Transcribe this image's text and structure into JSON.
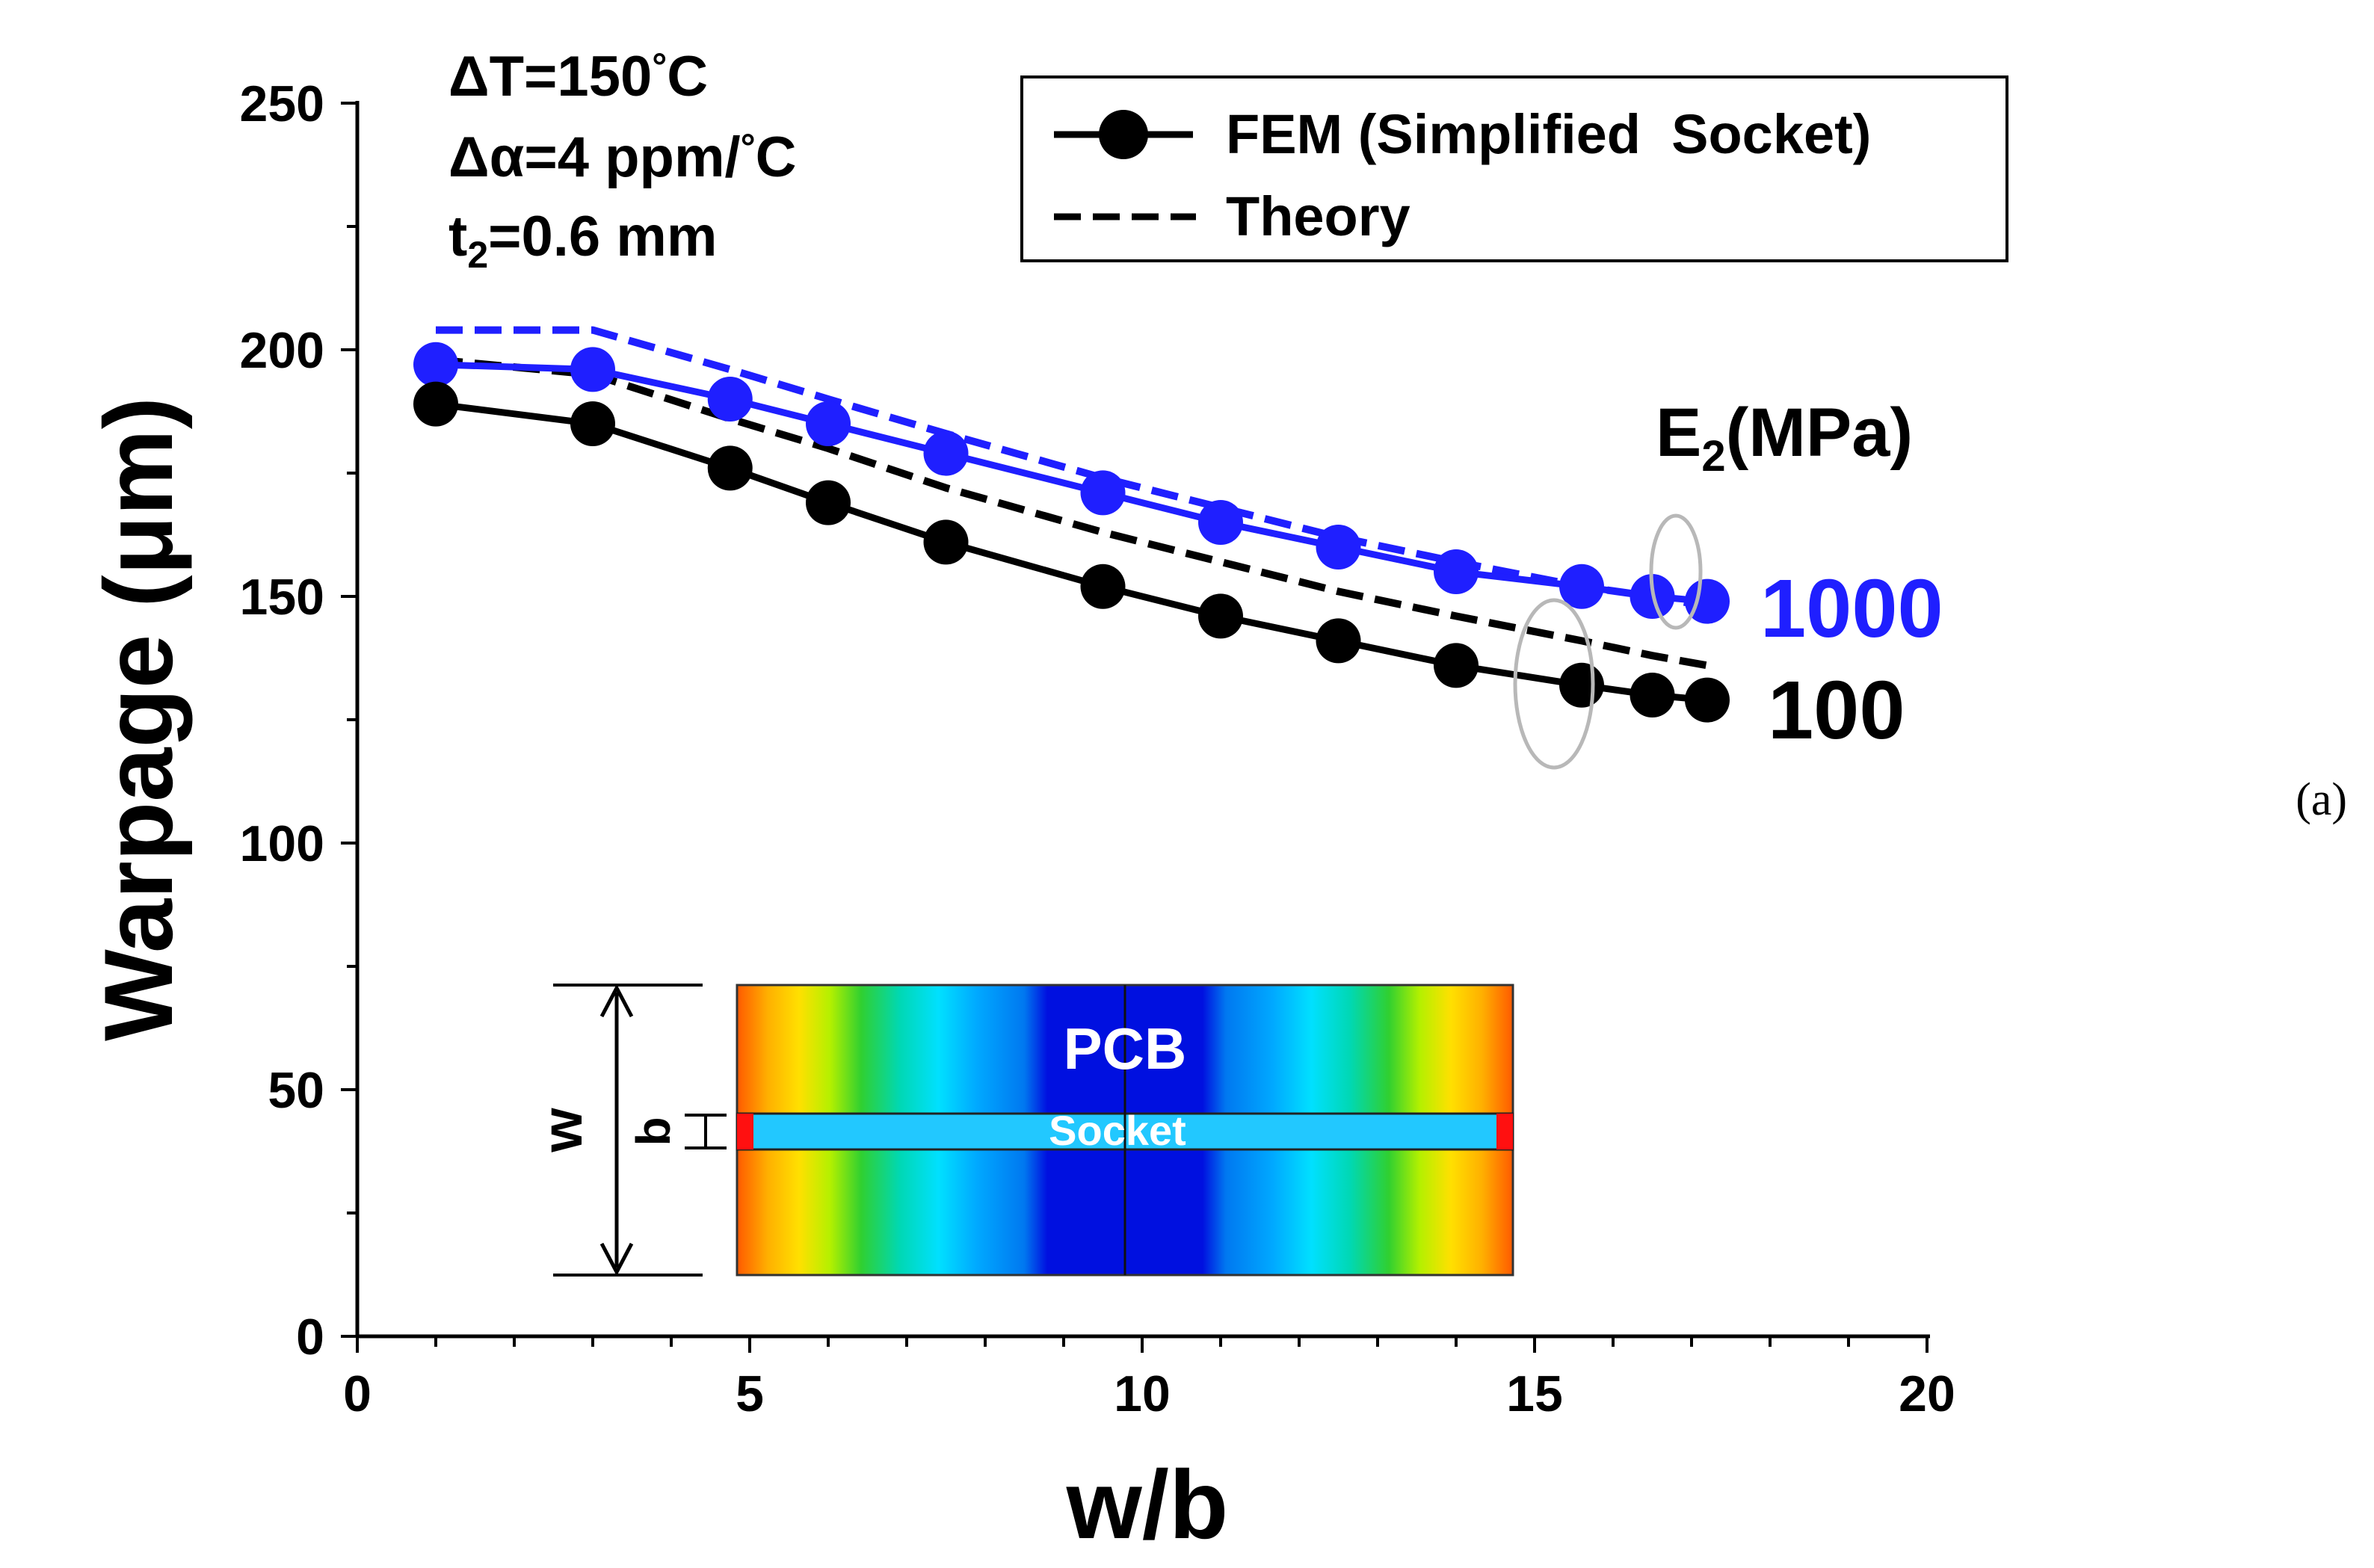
{
  "chart_data": {
    "type": "line",
    "xlabel": "w/b",
    "ylabel": "Warpage (μm)",
    "xlim": [
      0,
      20
    ],
    "ylim": [
      0,
      250
    ],
    "xticks": [
      0,
      5,
      10,
      15,
      20
    ],
    "yticks": [
      0,
      50,
      100,
      150,
      200,
      250
    ],
    "conditions": {
      "dT_prefix": "ΔT=150",
      "deg": "°",
      "dT_unit": "C",
      "dalpha_prefix": "Δα=4 ppm/",
      "dalpha_unit": "C",
      "t2_main": "t",
      "t2_sub": "2",
      "t2_rest": "=0.6 mm"
    },
    "legend": {
      "fem_label": "FEM (Simplified  Socket)",
      "theory_label": "Theory"
    },
    "param_label": {
      "main": "E",
      "sub": "2",
      "rest": "(MPa)"
    },
    "series": [
      {
        "name": "FEM E2=1000",
        "label": "1000",
        "style": "solid-marker",
        "color": "#1f1fff",
        "x": [
          1.0,
          3.0,
          4.75,
          6.0,
          7.5,
          9.5,
          11.0,
          12.5,
          14.0,
          15.6,
          16.5,
          17.2
        ],
        "y": [
          197,
          196,
          190,
          185,
          179,
          171,
          165,
          160,
          155,
          152,
          150,
          149
        ]
      },
      {
        "name": "Theory E2=1000",
        "style": "dashed",
        "color": "#1f1fff",
        "x": [
          1.0,
          3.0,
          4.75,
          6.0,
          7.5,
          9.5,
          11.0,
          12.5,
          14.0,
          15.6,
          16.5,
          17.2
        ],
        "y": [
          204,
          204,
          196,
          190,
          183,
          174,
          168,
          162,
          157,
          152,
          150,
          148
        ]
      },
      {
        "name": "FEM E2=100",
        "label": "100",
        "style": "solid-marker",
        "color": "#000000",
        "x": [
          1.0,
          3.0,
          4.75,
          6.0,
          7.5,
          9.5,
          11.0,
          12.5,
          14.0,
          15.6,
          16.5,
          17.2
        ],
        "y": [
          189,
          185,
          176,
          169,
          161,
          152,
          146,
          141,
          136,
          132,
          130,
          129
        ]
      },
      {
        "name": "Theory E2=100",
        "style": "dashed",
        "color": "#000000",
        "x": [
          1.0,
          3.0,
          4.75,
          6.0,
          7.5,
          9.5,
          11.0,
          12.5,
          14.0,
          15.6,
          16.5,
          17.2
        ],
        "y": [
          198,
          195,
          186,
          180,
          172,
          163,
          157,
          151,
          146,
          141,
          138,
          136
        ]
      }
    ],
    "inset": {
      "pcb_label": "PCB",
      "socket_label": "Socket",
      "w_label": "w",
      "b_label": "b"
    },
    "panel_label": "(a)"
  }
}
